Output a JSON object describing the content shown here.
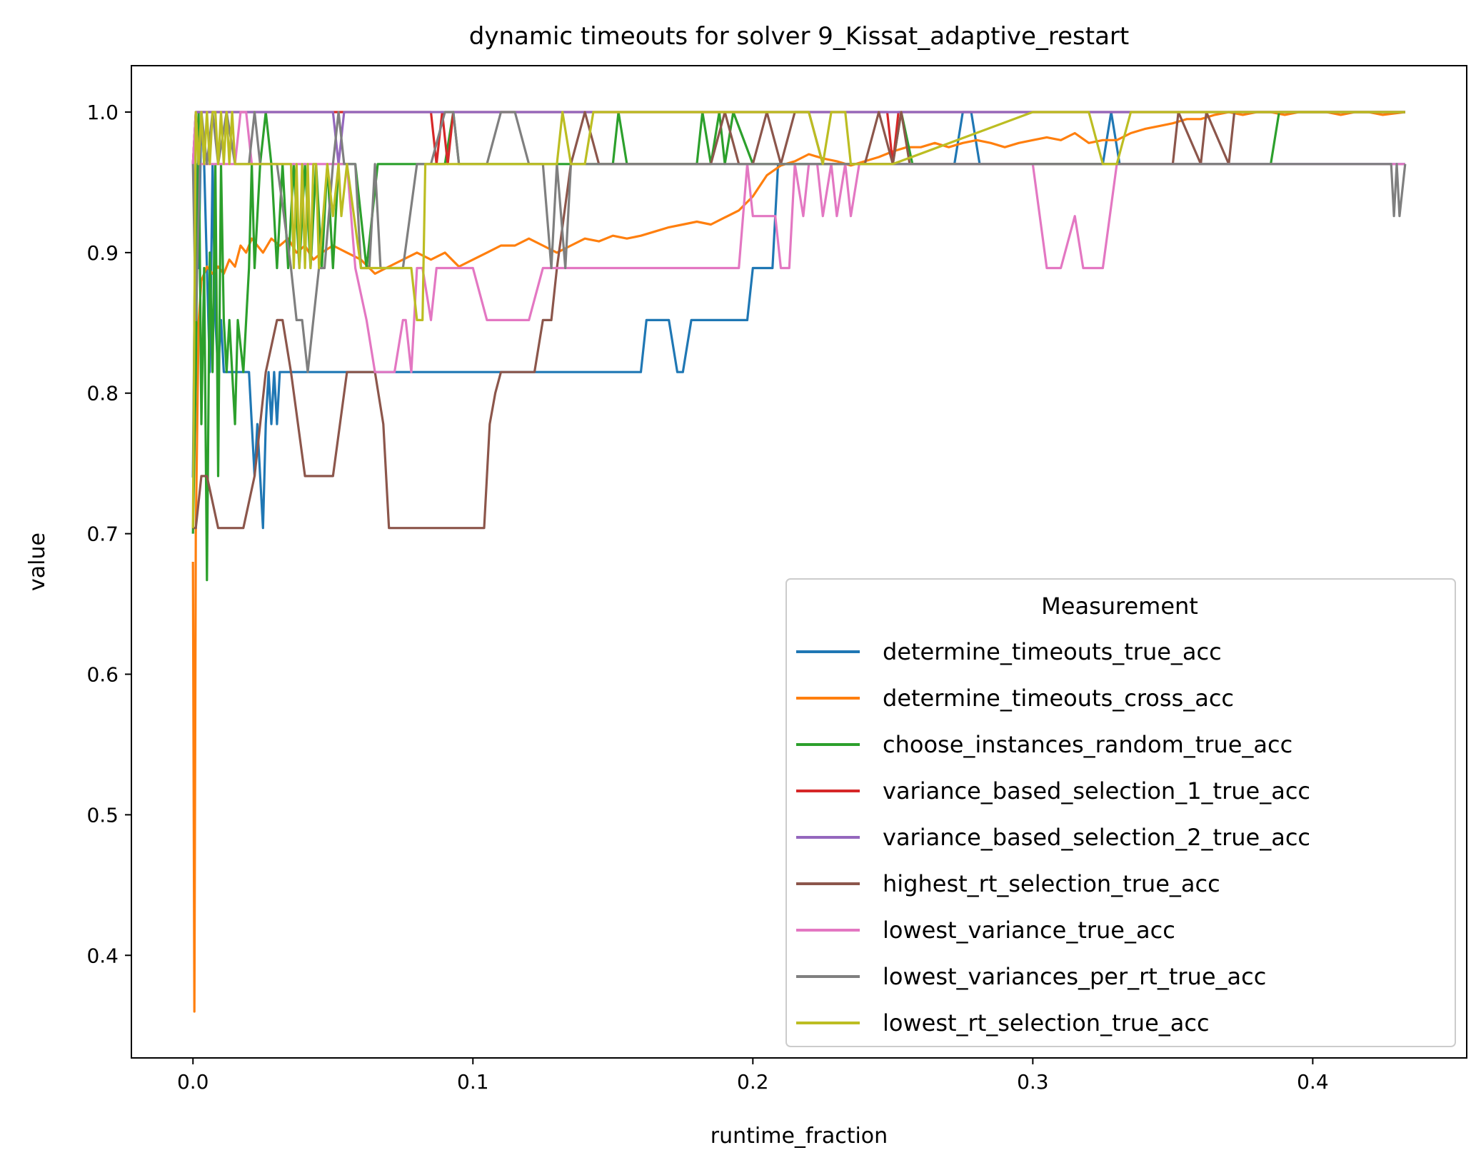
{
  "chart_data": {
    "type": "line",
    "title": "dynamic timeouts for solver 9_Kissat_adaptive_restart",
    "xlabel": "runtime_fraction",
    "ylabel": "value",
    "xlim": [
      -0.022,
      0.455
    ],
    "ylim": [
      0.327,
      1.033
    ],
    "xticks": [
      0.0,
      0.1,
      0.2,
      0.3,
      0.4
    ],
    "xtick_labels": [
      "0.0",
      "0.1",
      "0.2",
      "0.3",
      "0.4"
    ],
    "yticks": [
      0.4,
      0.5,
      0.6,
      0.7,
      0.8,
      0.9,
      1.0
    ],
    "ytick_labels": [
      "0.4",
      "0.5",
      "0.6",
      "0.7",
      "0.8",
      "0.9",
      "1.0"
    ],
    "grid": false,
    "legend": {
      "title": "Measurement",
      "placement": "lower-right"
    },
    "series": [
      {
        "name": "determine_timeouts_true_acc",
        "color": "#1f77b4",
        "x": [
          0.0,
          0.001,
          0.002,
          0.003,
          0.004,
          0.005,
          0.006,
          0.007,
          0.008,
          0.009,
          0.01,
          0.011,
          0.02,
          0.021,
          0.022,
          0.023,
          0.024,
          0.025,
          0.026,
          0.027,
          0.028,
          0.029,
          0.03,
          0.031,
          0.032,
          0.033,
          0.16,
          0.162,
          0.17,
          0.173,
          0.175,
          0.178,
          0.195,
          0.198,
          0.2,
          0.207,
          0.209,
          0.22,
          0.245,
          0.272,
          0.275,
          0.278,
          0.281,
          0.284,
          0.3,
          0.32,
          0.325,
          0.328,
          0.331,
          0.335,
          0.433
        ],
        "y": [
          0.74,
          0.963,
          0.889,
          1.0,
          0.963,
          0.889,
          0.815,
          0.963,
          0.852,
          0.815,
          0.852,
          0.815,
          0.815,
          0.778,
          0.741,
          0.778,
          0.741,
          0.704,
          0.778,
          0.815,
          0.778,
          0.815,
          0.778,
          0.815,
          0.815,
          0.815,
          0.815,
          0.852,
          0.852,
          0.815,
          0.815,
          0.852,
          0.852,
          0.852,
          0.889,
          0.889,
          0.963,
          0.963,
          0.963,
          0.963,
          1.0,
          1.0,
          0.963,
          0.963,
          0.963,
          0.963,
          0.963,
          1.0,
          0.963,
          0.963,
          0.963
        ]
      },
      {
        "name": "determine_timeouts_cross_acc",
        "color": "#ff7f0e",
        "x": [
          0.0,
          0.0005,
          0.001,
          0.002,
          0.003,
          0.005,
          0.007,
          0.009,
          0.011,
          0.013,
          0.015,
          0.017,
          0.019,
          0.021,
          0.023,
          0.025,
          0.028,
          0.031,
          0.034,
          0.037,
          0.04,
          0.043,
          0.046,
          0.05,
          0.055,
          0.06,
          0.065,
          0.07,
          0.075,
          0.08,
          0.085,
          0.09,
          0.095,
          0.1,
          0.105,
          0.11,
          0.115,
          0.12,
          0.125,
          0.13,
          0.135,
          0.14,
          0.145,
          0.15,
          0.155,
          0.16,
          0.165,
          0.17,
          0.175,
          0.18,
          0.185,
          0.19,
          0.195,
          0.2,
          0.205,
          0.21,
          0.215,
          0.22,
          0.225,
          0.23,
          0.235,
          0.24,
          0.245,
          0.25,
          0.255,
          0.26,
          0.265,
          0.27,
          0.275,
          0.28,
          0.285,
          0.29,
          0.295,
          0.3,
          0.305,
          0.31,
          0.315,
          0.32,
          0.325,
          0.33,
          0.335,
          0.34,
          0.345,
          0.35,
          0.355,
          0.36,
          0.365,
          0.37,
          0.375,
          0.38,
          0.385,
          0.39,
          0.395,
          0.4,
          0.405,
          0.41,
          0.415,
          0.42,
          0.425,
          0.433
        ],
        "y": [
          0.68,
          0.36,
          0.7,
          0.85,
          0.88,
          0.89,
          0.885,
          0.89,
          0.885,
          0.895,
          0.89,
          0.905,
          0.9,
          0.91,
          0.905,
          0.9,
          0.91,
          0.905,
          0.91,
          0.9,
          0.905,
          0.895,
          0.9,
          0.905,
          0.9,
          0.895,
          0.885,
          0.89,
          0.895,
          0.9,
          0.895,
          0.9,
          0.89,
          0.895,
          0.9,
          0.905,
          0.905,
          0.91,
          0.905,
          0.9,
          0.905,
          0.91,
          0.908,
          0.912,
          0.91,
          0.912,
          0.915,
          0.918,
          0.92,
          0.922,
          0.92,
          0.925,
          0.93,
          0.94,
          0.955,
          0.962,
          0.965,
          0.97,
          0.967,
          0.965,
          0.962,
          0.965,
          0.968,
          0.972,
          0.975,
          0.975,
          0.978,
          0.975,
          0.978,
          0.98,
          0.978,
          0.975,
          0.978,
          0.98,
          0.982,
          0.98,
          0.985,
          0.978,
          0.98,
          0.98,
          0.985,
          0.988,
          0.99,
          0.992,
          0.995,
          0.995,
          0.998,
          1.0,
          0.998,
          1.0,
          1.0,
          0.998,
          1.0,
          1.0,
          1.0,
          0.998,
          1.0,
          1.0,
          0.998,
          1.0
        ]
      },
      {
        "name": "choose_instances_random_true_acc",
        "color": "#2ca02c",
        "x": [
          0.0,
          0.001,
          0.002,
          0.003,
          0.004,
          0.005,
          0.006,
          0.007,
          0.008,
          0.009,
          0.01,
          0.011,
          0.012,
          0.013,
          0.014,
          0.015,
          0.016,
          0.018,
          0.02,
          0.021,
          0.022,
          0.024,
          0.026,
          0.028,
          0.03,
          0.032,
          0.034,
          0.036,
          0.038,
          0.04,
          0.042,
          0.044,
          0.046,
          0.048,
          0.05,
          0.052,
          0.054,
          0.056,
          0.058,
          0.062,
          0.066,
          0.068,
          0.07,
          0.075,
          0.08,
          0.085,
          0.09,
          0.093,
          0.095,
          0.098,
          0.1,
          0.11,
          0.15,
          0.152,
          0.155,
          0.157,
          0.18,
          0.182,
          0.185,
          0.188,
          0.19,
          0.193,
          0.2,
          0.21,
          0.25,
          0.253,
          0.257,
          0.26,
          0.3,
          0.385,
          0.388,
          0.433
        ],
        "y": [
          0.7,
          0.815,
          1.0,
          0.778,
          0.889,
          0.667,
          0.9,
          0.815,
          0.963,
          0.741,
          0.963,
          0.852,
          0.815,
          0.852,
          0.815,
          0.778,
          0.852,
          0.815,
          0.889,
          0.963,
          0.889,
          0.963,
          1.0,
          0.963,
          0.889,
          0.963,
          0.889,
          0.963,
          0.889,
          0.963,
          0.889,
          0.963,
          0.889,
          0.963,
          0.889,
          0.963,
          0.963,
          0.963,
          0.963,
          0.889,
          0.963,
          0.963,
          0.963,
          0.963,
          0.963,
          0.963,
          0.963,
          1.0,
          0.963,
          0.963,
          0.963,
          0.963,
          0.963,
          1.0,
          0.963,
          0.963,
          0.963,
          1.0,
          0.963,
          1.0,
          0.963,
          1.0,
          0.963,
          0.963,
          0.963,
          1.0,
          0.963,
          0.963,
          0.963,
          0.963,
          1.0,
          1.0
        ]
      },
      {
        "name": "variance_based_selection_1_true_acc",
        "color": "#d62728",
        "x": [
          0.0,
          0.001,
          0.002,
          0.085,
          0.087,
          0.089,
          0.091,
          0.093,
          0.248,
          0.25,
          0.252,
          0.433
        ],
        "y": [
          0.963,
          1.0,
          1.0,
          1.0,
          0.963,
          1.0,
          0.963,
          1.0,
          1.0,
          0.963,
          1.0,
          1.0
        ]
      },
      {
        "name": "variance_based_selection_2_true_acc",
        "color": "#9467bd",
        "x": [
          0.0,
          0.001,
          0.002,
          0.05,
          0.052,
          0.054,
          0.433
        ],
        "y": [
          0.963,
          1.0,
          1.0,
          1.0,
          0.963,
          1.0,
          1.0
        ]
      },
      {
        "name": "highest_rt_selection_true_acc",
        "color": "#8c564b",
        "x": [
          0.0,
          0.001,
          0.003,
          0.005,
          0.009,
          0.018,
          0.022,
          0.026,
          0.03,
          0.032,
          0.035,
          0.04,
          0.045,
          0.05,
          0.055,
          0.06,
          0.065,
          0.068,
          0.07,
          0.075,
          0.08,
          0.085,
          0.09,
          0.095,
          0.1,
          0.104,
          0.106,
          0.108,
          0.11,
          0.115,
          0.12,
          0.122,
          0.125,
          0.128,
          0.13,
          0.135,
          0.14,
          0.145,
          0.15,
          0.155,
          0.16,
          0.165,
          0.17,
          0.175,
          0.18,
          0.185,
          0.19,
          0.195,
          0.2,
          0.205,
          0.21,
          0.215,
          0.22,
          0.225,
          0.23,
          0.235,
          0.24,
          0.245,
          0.25,
          0.253,
          0.256,
          0.26,
          0.3,
          0.35,
          0.352,
          0.36,
          0.362,
          0.37,
          0.372,
          0.433
        ],
        "y": [
          0.704,
          0.704,
          0.741,
          0.741,
          0.704,
          0.704,
          0.741,
          0.815,
          0.852,
          0.852,
          0.815,
          0.741,
          0.741,
          0.741,
          0.815,
          0.815,
          0.815,
          0.778,
          0.704,
          0.704,
          0.704,
          0.704,
          0.704,
          0.704,
          0.704,
          0.704,
          0.778,
          0.8,
          0.815,
          0.815,
          0.815,
          0.815,
          0.852,
          0.852,
          0.889,
          0.963,
          1.0,
          0.963,
          0.963,
          0.963,
          0.963,
          0.963,
          0.963,
          0.963,
          0.963,
          0.963,
          1.0,
          0.963,
          0.963,
          1.0,
          0.963,
          1.0,
          1.0,
          0.963,
          0.963,
          0.963,
          0.963,
          1.0,
          0.963,
          1.0,
          0.963,
          0.963,
          0.963,
          0.963,
          1.0,
          0.963,
          1.0,
          0.963,
          1.0,
          1.0
        ]
      },
      {
        "name": "lowest_variance_true_acc",
        "color": "#e377c2",
        "x": [
          0.0,
          0.001,
          0.002,
          0.015,
          0.017,
          0.019,
          0.021,
          0.055,
          0.058,
          0.062,
          0.065,
          0.068,
          0.072,
          0.075,
          0.076,
          0.078,
          0.08,
          0.082,
          0.085,
          0.087,
          0.09,
          0.092,
          0.095,
          0.1,
          0.105,
          0.108,
          0.11,
          0.12,
          0.125,
          0.13,
          0.15,
          0.17,
          0.19,
          0.195,
          0.198,
          0.2,
          0.205,
          0.208,
          0.21,
          0.213,
          0.215,
          0.218,
          0.22,
          0.223,
          0.225,
          0.228,
          0.23,
          0.233,
          0.235,
          0.238,
          0.24,
          0.25,
          0.3,
          0.305,
          0.31,
          0.315,
          0.318,
          0.32,
          0.325,
          0.33,
          0.333,
          0.34,
          0.345,
          0.35,
          0.433
        ],
        "y": [
          0.963,
          1.0,
          0.963,
          0.963,
          1.0,
          1.0,
          0.963,
          0.963,
          0.889,
          0.852,
          0.815,
          0.815,
          0.815,
          0.852,
          0.852,
          0.815,
          0.889,
          0.889,
          0.852,
          0.889,
          0.889,
          0.889,
          0.889,
          0.889,
          0.852,
          0.852,
          0.852,
          0.852,
          0.889,
          0.889,
          0.889,
          0.889,
          0.889,
          0.889,
          0.963,
          0.926,
          0.926,
          0.926,
          0.889,
          0.889,
          0.963,
          0.926,
          0.963,
          0.963,
          0.926,
          0.963,
          0.926,
          0.963,
          0.926,
          0.963,
          0.963,
          0.963,
          0.963,
          0.889,
          0.889,
          0.926,
          0.889,
          0.889,
          0.889,
          0.963,
          0.963,
          0.963,
          0.963,
          0.963,
          0.963
        ]
      },
      {
        "name": "lowest_variances_per_rt_true_acc",
        "color": "#7f7f7f",
        "x": [
          0.0,
          0.001,
          0.003,
          0.005,
          0.007,
          0.009,
          0.012,
          0.015,
          0.02,
          0.022,
          0.024,
          0.03,
          0.035,
          0.037,
          0.039,
          0.041,
          0.043,
          0.045,
          0.047,
          0.05,
          0.052,
          0.054,
          0.056,
          0.058,
          0.06,
          0.063,
          0.065,
          0.067,
          0.069,
          0.071,
          0.073,
          0.075,
          0.08,
          0.085,
          0.09,
          0.093,
          0.095,
          0.098,
          0.1,
          0.105,
          0.11,
          0.115,
          0.12,
          0.125,
          0.128,
          0.13,
          0.133,
          0.135,
          0.14,
          0.145,
          0.2,
          0.25,
          0.3,
          0.35,
          0.4,
          0.428,
          0.429,
          0.43,
          0.431,
          0.433
        ],
        "y": [
          0.963,
          0.852,
          1.0,
          0.963,
          1.0,
          0.963,
          1.0,
          0.963,
          0.963,
          1.0,
          0.963,
          0.963,
          0.889,
          0.852,
          0.852,
          0.815,
          0.852,
          0.889,
          0.889,
          0.963,
          1.0,
          0.963,
          0.963,
          0.963,
          0.889,
          0.889,
          0.963,
          0.889,
          0.889,
          0.889,
          0.889,
          0.889,
          0.963,
          0.963,
          1.0,
          1.0,
          0.963,
          0.963,
          0.963,
          0.963,
          1.0,
          1.0,
          0.963,
          0.963,
          0.889,
          0.963,
          0.889,
          0.963,
          0.963,
          0.963,
          0.963,
          0.963,
          0.963,
          0.963,
          0.963,
          0.963,
          0.926,
          0.963,
          0.926,
          0.963
        ]
      },
      {
        "name": "lowest_rt_selection_true_acc",
        "color": "#bcbd22",
        "x": [
          0.0,
          0.001,
          0.002,
          0.003,
          0.004,
          0.005,
          0.006,
          0.007,
          0.008,
          0.009,
          0.01,
          0.011,
          0.012,
          0.013,
          0.014,
          0.015,
          0.016,
          0.02,
          0.025,
          0.03,
          0.035,
          0.036,
          0.037,
          0.038,
          0.039,
          0.04,
          0.041,
          0.042,
          0.043,
          0.044,
          0.045,
          0.048,
          0.05,
          0.052,
          0.053,
          0.055,
          0.06,
          0.065,
          0.07,
          0.075,
          0.078,
          0.08,
          0.082,
          0.083,
          0.085,
          0.09,
          0.1,
          0.12,
          0.13,
          0.132,
          0.135,
          0.14,
          0.143,
          0.2,
          0.22,
          0.225,
          0.228,
          0.233,
          0.235,
          0.24,
          0.25,
          0.3,
          0.305,
          0.31,
          0.32,
          0.325,
          0.328,
          0.33,
          0.335,
          0.433
        ],
        "y": [
          0.704,
          1.0,
          0.963,
          1.0,
          0.963,
          1.0,
          0.963,
          1.0,
          1.0,
          0.963,
          1.0,
          0.963,
          1.0,
          0.963,
          1.0,
          0.963,
          0.963,
          0.963,
          0.963,
          0.963,
          0.963,
          0.889,
          0.963,
          0.889,
          0.963,
          0.889,
          0.963,
          0.889,
          0.963,
          0.963,
          0.889,
          0.963,
          0.926,
          0.963,
          0.926,
          0.963,
          0.889,
          0.889,
          0.889,
          0.889,
          0.889,
          0.852,
          0.852,
          0.963,
          0.963,
          0.963,
          0.963,
          0.963,
          0.963,
          1.0,
          0.963,
          0.963,
          1.0,
          1.0,
          1.0,
          0.963,
          1.0,
          1.0,
          0.963,
          0.963,
          0.963,
          1.0,
          1.0,
          1.0,
          1.0,
          0.963,
          0.963,
          0.963,
          1.0,
          1.0
        ]
      }
    ]
  }
}
